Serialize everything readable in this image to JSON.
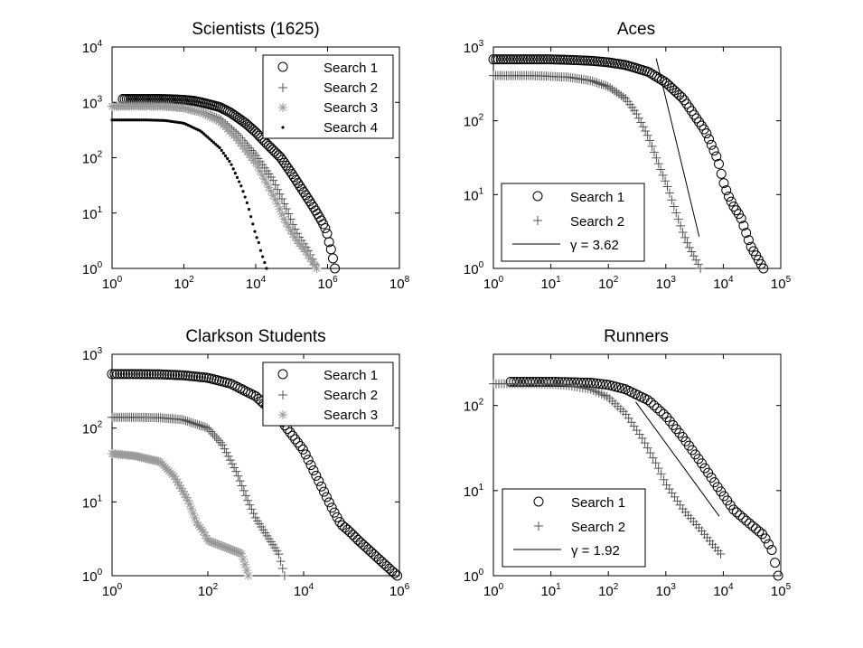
{
  "figure": {
    "panels": [
      "scientists",
      "aces",
      "clarkson",
      "runners"
    ]
  },
  "chart_data": [
    {
      "id": "scientists",
      "type": "scatter",
      "title": "Scientists (1625)",
      "xscale": "log",
      "yscale": "log",
      "xlim": [
        1,
        100000000
      ],
      "ylim": [
        1,
        10000
      ],
      "x_tick_labels": [
        {
          "base": "10",
          "exp": "0"
        },
        {
          "base": "10",
          "exp": "2"
        },
        {
          "base": "10",
          "exp": "4"
        },
        {
          "base": "10",
          "exp": "6"
        },
        {
          "base": "10",
          "exp": "8"
        }
      ],
      "y_tick_labels": [
        {
          "base": "10",
          "exp": "0"
        },
        {
          "base": "10",
          "exp": "1"
        },
        {
          "base": "10",
          "exp": "2"
        },
        {
          "base": "10",
          "exp": "3"
        },
        {
          "base": "10",
          "exp": "4"
        }
      ],
      "legend_position": "top-right",
      "series": [
        {
          "name": "Search 1",
          "marker": "circle",
          "color": "#000000",
          "n": 110,
          "x": [
            2,
            5,
            10,
            20,
            40,
            100,
            200,
            400,
            1000,
            2000,
            5000,
            10000,
            20000,
            50000,
            100000,
            200000,
            400000,
            700000,
            900000,
            1000000,
            1100000,
            1300000,
            1600000
          ],
          "y": [
            1150,
            1150,
            1150,
            1150,
            1140,
            1110,
            1060,
            960,
            820,
            650,
            430,
            290,
            180,
            100,
            52,
            26,
            13,
            7,
            5,
            4,
            3,
            2,
            1
          ]
        },
        {
          "name": "Search 2",
          "marker": "plus",
          "color": "#555555",
          "n": 95,
          "x": [
            1,
            3,
            10,
            30,
            100,
            300,
            1000,
            3000,
            10000,
            30000,
            50000,
            80000,
            110000,
            150000,
            200000,
            300000,
            500000
          ],
          "y": [
            850,
            860,
            860,
            850,
            800,
            680,
            500,
            270,
            110,
            40,
            20,
            10,
            6,
            4,
            3,
            2,
            1
          ]
        },
        {
          "name": "Search 3",
          "marker": "asterisk",
          "color": "#999999",
          "n": 95,
          "x": [
            1,
            3,
            10,
            30,
            100,
            300,
            1000,
            3000,
            10000,
            20000,
            40000,
            60000,
            90000,
            150000,
            250000,
            500000
          ],
          "y": [
            850,
            860,
            860,
            850,
            790,
            660,
            450,
            220,
            80,
            35,
            15,
            8,
            5,
            3,
            2,
            1
          ]
        },
        {
          "name": "Search 4",
          "marker": "dot",
          "color": "#000000",
          "n": 80,
          "x": [
            1,
            3,
            10,
            30,
            100,
            300,
            1000,
            2000,
            4000,
            6000,
            8000,
            10000,
            12000,
            14000,
            20000
          ],
          "y": [
            480,
            480,
            480,
            470,
            420,
            300,
            150,
            80,
            30,
            14,
            7,
            4,
            3,
            2,
            1
          ]
        }
      ]
    },
    {
      "id": "aces",
      "type": "scatter",
      "title": "Aces",
      "xscale": "log",
      "yscale": "log",
      "xlim": [
        1,
        100000
      ],
      "ylim": [
        1,
        1000
      ],
      "x_tick_labels": [
        {
          "base": "10",
          "exp": "0"
        },
        {
          "base": "10",
          "exp": "1"
        },
        {
          "base": "10",
          "exp": "2"
        },
        {
          "base": "10",
          "exp": "3"
        },
        {
          "base": "10",
          "exp": "4"
        },
        {
          "base": "10",
          "exp": "5"
        }
      ],
      "y_tick_labels": [
        {
          "base": "10",
          "exp": "0"
        },
        {
          "base": "10",
          "exp": "1"
        },
        {
          "base": "10",
          "exp": "2"
        },
        {
          "base": "10",
          "exp": "3"
        }
      ],
      "legend_position": "bottom-left",
      "series": [
        {
          "name": "Search 1",
          "marker": "circle",
          "color": "#000000",
          "n": 110,
          "x": [
            1,
            2,
            5,
            10,
            20,
            50,
            100,
            200,
            500,
            1000,
            2000,
            5000,
            8000,
            10000,
            12000,
            15000,
            20000,
            30000,
            50000
          ],
          "y": [
            680,
            680,
            680,
            680,
            670,
            650,
            620,
            570,
            460,
            330,
            200,
            70,
            30,
            15,
            10,
            7,
            5,
            2,
            1
          ]
        },
        {
          "name": "Search 2",
          "marker": "plus",
          "color": "#555555",
          "n": 95,
          "x": [
            1,
            2,
            5,
            10,
            20,
            50,
            100,
            200,
            300,
            500,
            700,
            900,
            1100,
            1300,
            1600,
            2000,
            2500,
            4000
          ],
          "y": [
            410,
            410,
            410,
            400,
            390,
            350,
            290,
            200,
            130,
            60,
            30,
            18,
            12,
            8,
            5,
            3,
            2,
            1
          ]
        }
      ],
      "fit_line": {
        "label": "γ = 3.62",
        "gamma": 3.62,
        "x": [
          680,
          3800
        ],
        "y": [
          700,
          2.7
        ]
      }
    },
    {
      "id": "clarkson",
      "type": "scatter",
      "title": "Clarkson Students",
      "xscale": "log",
      "yscale": "log",
      "xlim": [
        1,
        1000000
      ],
      "ylim": [
        1,
        1000
      ],
      "x_tick_labels": [
        {
          "base": "10",
          "exp": "0"
        },
        {
          "base": "10",
          "exp": "2"
        },
        {
          "base": "10",
          "exp": "4"
        },
        {
          "base": "10",
          "exp": "6"
        }
      ],
      "y_tick_labels": [
        {
          "base": "10",
          "exp": "0"
        },
        {
          "base": "10",
          "exp": "1"
        },
        {
          "base": "10",
          "exp": "2"
        },
        {
          "base": "10",
          "exp": "3"
        }
      ],
      "legend_position": "top-right",
      "series": [
        {
          "name": "Search 1",
          "marker": "circle",
          "color": "#000000",
          "n": 110,
          "x": [
            1,
            3,
            10,
            30,
            100,
            300,
            1000,
            3000,
            10000,
            20000,
            40000,
            60000,
            90000,
            140000,
            900000
          ],
          "y": [
            540,
            540,
            535,
            520,
            480,
            400,
            270,
            140,
            50,
            20,
            8,
            5,
            4,
            3,
            1
          ]
        },
        {
          "name": "Search 2",
          "marker": "plus",
          "color": "#555555",
          "n": 90,
          "x": [
            1,
            3,
            10,
            30,
            100,
            200,
            400,
            700,
            1000,
            1500,
            2000,
            3000,
            4000
          ],
          "y": [
            140,
            140,
            138,
            130,
            100,
            60,
            25,
            10,
            6,
            4,
            3,
            2,
            1
          ]
        },
        {
          "name": "Search 3",
          "marker": "asterisk",
          "color": "#999999",
          "n": 80,
          "x": [
            1,
            3,
            10,
            20,
            40,
            60,
            80,
            100,
            500,
            700
          ],
          "y": [
            45,
            42,
            35,
            22,
            10,
            5,
            4,
            3,
            2,
            1
          ]
        }
      ]
    },
    {
      "id": "runners",
      "type": "scatter",
      "title": "Runners",
      "xscale": "log",
      "yscale": "log",
      "xlim": [
        1,
        100000
      ],
      "ylim": [
        1,
        400
      ],
      "x_tick_labels": [
        {
          "base": "10",
          "exp": "0"
        },
        {
          "base": "10",
          "exp": "1"
        },
        {
          "base": "10",
          "exp": "2"
        },
        {
          "base": "10",
          "exp": "3"
        },
        {
          "base": "10",
          "exp": "4"
        },
        {
          "base": "10",
          "exp": "5"
        }
      ],
      "y_tick_labels": [
        {
          "base": "10",
          "exp": "0"
        },
        {
          "base": "10",
          "exp": "1"
        },
        {
          "base": "10",
          "exp": "2"
        }
      ],
      "legend_position": "bottom-left",
      "series": [
        {
          "name": "Search 1",
          "marker": "circle",
          "color": "#000000",
          "n": 85,
          "x": [
            2,
            5,
            10,
            20,
            50,
            100,
            200,
            500,
            1000,
            2000,
            4000,
            8000,
            15000,
            30000,
            50000,
            70000,
            90000
          ],
          "y": [
            190,
            190,
            190,
            188,
            185,
            175,
            155,
            115,
            75,
            42,
            22,
            11,
            6,
            4,
            3,
            2,
            1
          ]
        },
        {
          "name": "Search 2",
          "marker": "plus",
          "color": "#555555",
          "n": 85,
          "x": [
            1,
            2,
            5,
            10,
            20,
            50,
            100,
            200,
            400,
            700,
            1000,
            2000,
            4000,
            6000,
            9000
          ],
          "y": [
            180,
            180,
            180,
            178,
            172,
            155,
            125,
            80,
            40,
            20,
            12,
            6,
            3.5,
            2.5,
            1.8
          ]
        }
      ],
      "fit_line": {
        "label": "γ = 1.92",
        "gamma": 1.92,
        "x": [
          300,
          8500
        ],
        "y": [
          110,
          5
        ]
      }
    }
  ]
}
